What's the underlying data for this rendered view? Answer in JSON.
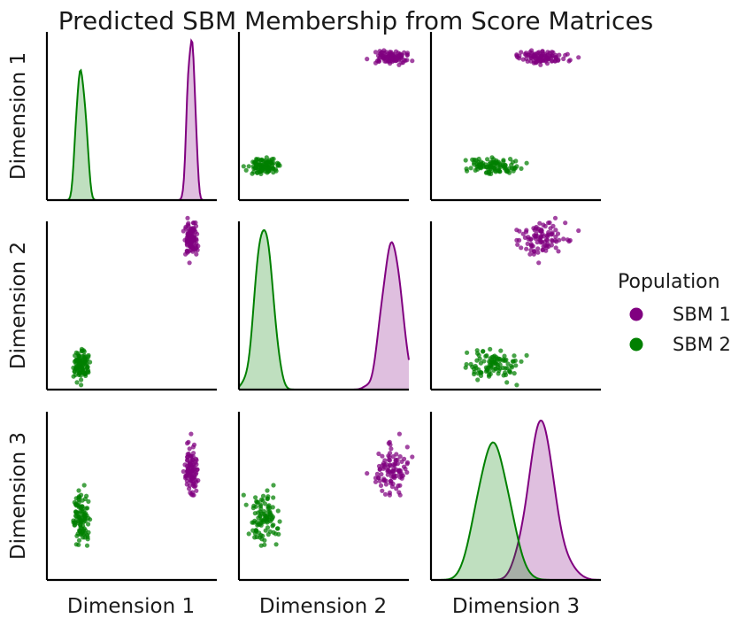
{
  "chart_data": {
    "type": "pairplot",
    "title": "Predicted SBM Membership from Score Matrices",
    "variables": [
      "Dimension 1",
      "Dimension 2",
      "Dimension 3"
    ],
    "legend": {
      "title": "Population",
      "placement": "right",
      "entries": [
        {
          "label": "SBM 1",
          "color": "#800080"
        },
        {
          "label": "SBM 2",
          "color": "#008000"
        }
      ]
    },
    "diagonal": "kde",
    "offdiagonal": "scatter",
    "series": [
      {
        "name": "SBM 1",
        "color": "#800080",
        "n_points": 100,
        "center": [
          0.85,
          0.9,
          0.62
        ],
        "spread": [
          0.018,
          0.045,
          0.055
        ]
      },
      {
        "name": "SBM 2",
        "color": "#008000",
        "n_points": 100,
        "center": [
          0.2,
          0.15,
          0.42
        ],
        "spread": [
          0.022,
          0.045,
          0.06
        ]
      }
    ]
  }
}
